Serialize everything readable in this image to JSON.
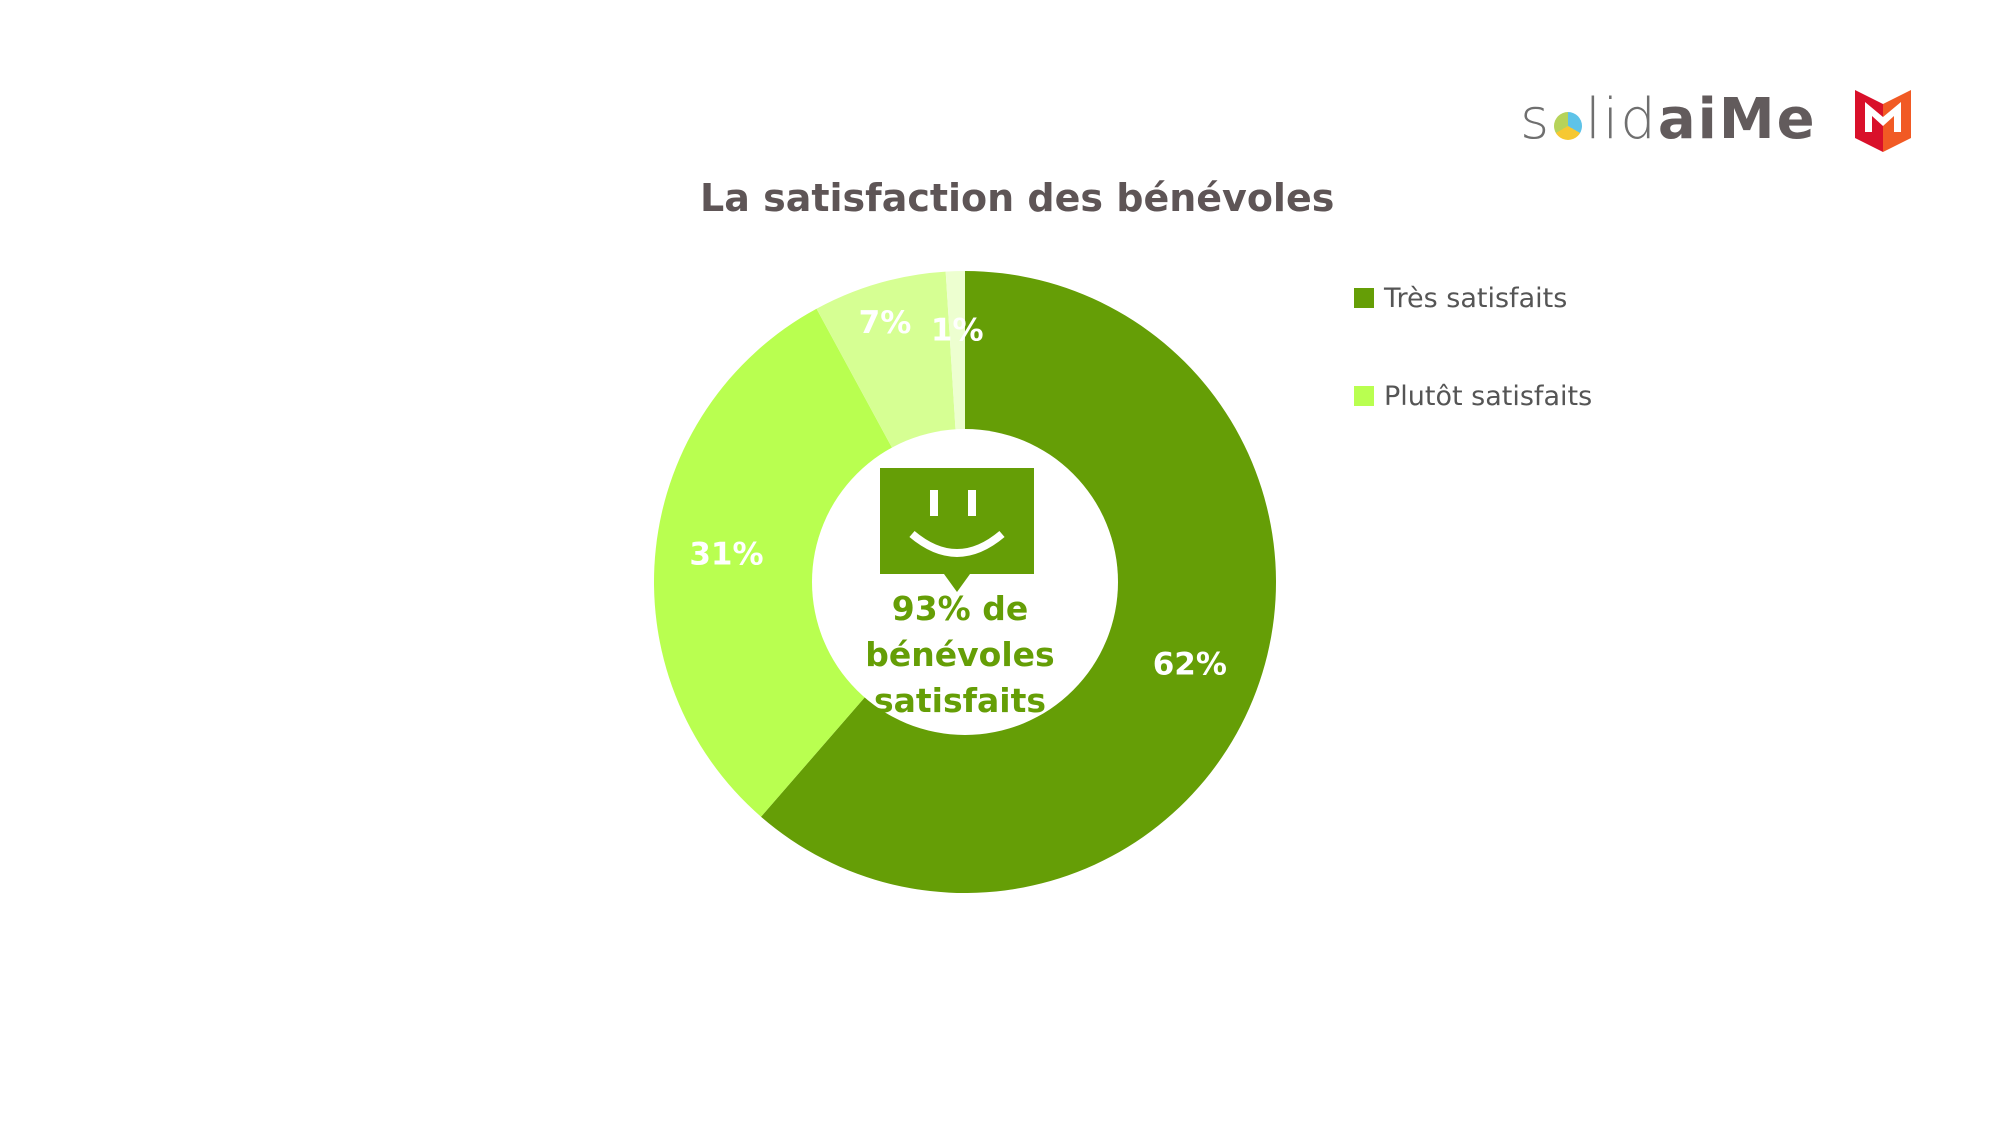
{
  "brand": {
    "logo_text_light": "solid",
    "logo_text_bold": "aiMe",
    "logo_dot_colors": [
      "#5ec3e8",
      "#f6c832",
      "#b6d35a"
    ],
    "mark_colors": [
      "#d9102a",
      "#f15a24"
    ]
  },
  "center_badge": {
    "line1": "93% de",
    "line2": "bénévoles",
    "line3": "satisfaits",
    "icon": "smiley-speech-bubble-icon"
  },
  "chart_data": {
    "type": "pie",
    "variant": "donut",
    "title": "La satisfaction des bénévoles",
    "slices": [
      {
        "label": "Très satisfaits",
        "value": 62,
        "display": "62%",
        "color": "#659e06",
        "in_legend": true
      },
      {
        "label": "Plutôt satisfaits",
        "value": 31,
        "display": "31%",
        "color": "#b9ff50",
        "in_legend": true
      },
      {
        "label": "",
        "value": 7,
        "display": "7%",
        "color": "#d6ff93",
        "in_legend": false
      },
      {
        "label": "",
        "value": 1,
        "display": "1%",
        "color": "#edffd0",
        "in_legend": false
      }
    ],
    "legend_position": "right",
    "start_angle": "top, clockwise"
  }
}
